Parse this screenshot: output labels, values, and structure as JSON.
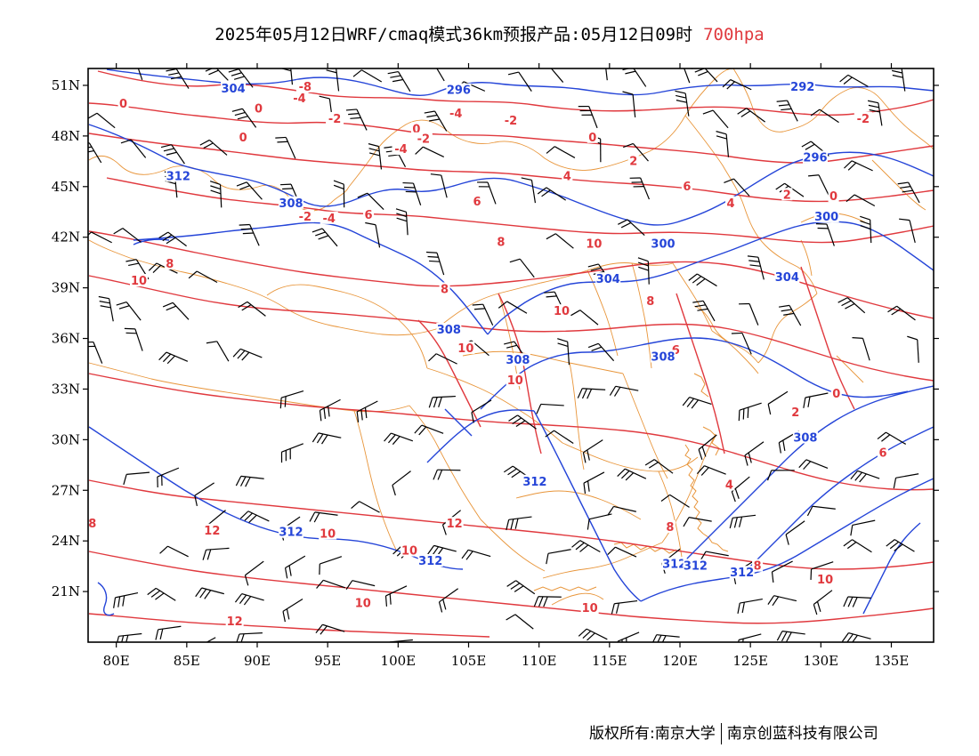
{
  "title": {
    "main": "2025年05月12日WRF/cmaq模式36km预报产品:05月12日09时",
    "level": "700hpa"
  },
  "axes": {
    "lat_labels": [
      "51N",
      "48N",
      "45N",
      "42N",
      "39N",
      "36N",
      "33N",
      "30N",
      "27N",
      "24N",
      "21N"
    ],
    "lat_values": [
      51,
      48,
      45,
      42,
      39,
      36,
      33,
      30,
      27,
      24,
      21
    ],
    "lon_labels": [
      "80E",
      "85E",
      "90E",
      "95E",
      "100E",
      "105E",
      "110E",
      "115E",
      "120E",
      "125E",
      "130E",
      "135E"
    ],
    "lon_values": [
      80,
      85,
      90,
      95,
      100,
      105,
      110,
      115,
      120,
      125,
      130,
      135
    ],
    "lon_range": [
      78,
      138
    ],
    "lat_range": [
      18,
      52
    ]
  },
  "colors": {
    "temperature": "#e0393e",
    "height": "#2545d8",
    "boundary": "#e8953a",
    "wind": "#000000"
  },
  "height_labels": [
    {
      "text": "304",
      "lon": 88.3,
      "lat": 50.8
    },
    {
      "text": "296",
      "lon": 104.3,
      "lat": 50.7
    },
    {
      "text": "292",
      "lon": 128.7,
      "lat": 50.9
    },
    {
      "text": "312",
      "lon": 84.4,
      "lat": 45.6
    },
    {
      "text": "308",
      "lon": 92.4,
      "lat": 44.0
    },
    {
      "text": "296",
      "lon": 129.6,
      "lat": 46.7
    },
    {
      "text": "300",
      "lon": 130.4,
      "lat": 43.2
    },
    {
      "text": "300",
      "lon": 118.8,
      "lat": 41.6
    },
    {
      "text": "304",
      "lon": 114.9,
      "lat": 39.5
    },
    {
      "text": "304",
      "lon": 127.6,
      "lat": 39.6
    },
    {
      "text": "308",
      "lon": 103.6,
      "lat": 36.5
    },
    {
      "text": "308",
      "lon": 108.5,
      "lat": 34.7
    },
    {
      "text": "308",
      "lon": 118.8,
      "lat": 34.9
    },
    {
      "text": "308",
      "lon": 128.9,
      "lat": 30.1
    },
    {
      "text": "312",
      "lon": 109.7,
      "lat": 27.5
    },
    {
      "text": "312",
      "lon": 92.4,
      "lat": 24.5
    },
    {
      "text": "312",
      "lon": 102.3,
      "lat": 22.8
    },
    {
      "text": "312",
      "lon": 119.6,
      "lat": 22.6
    },
    {
      "text": "312",
      "lon": 121.1,
      "lat": 22.5
    },
    {
      "text": "312",
      "lon": 124.4,
      "lat": 22.1
    }
  ],
  "temperature_labels": [
    {
      "text": "-8",
      "lon": 93.4,
      "lat": 50.9
    },
    {
      "text": "-4",
      "lon": 93.0,
      "lat": 50.2
    },
    {
      "text": "0",
      "lon": 80.5,
      "lat": 49.9
    },
    {
      "text": "0",
      "lon": 90.1,
      "lat": 49.6
    },
    {
      "text": "-2",
      "lon": 95.5,
      "lat": 49.0
    },
    {
      "text": "-4",
      "lon": 104.1,
      "lat": 49.3
    },
    {
      "text": "-2",
      "lon": 108.0,
      "lat": 48.9
    },
    {
      "text": "0",
      "lon": 101.3,
      "lat": 48.4
    },
    {
      "text": "-2",
      "lon": 101.8,
      "lat": 47.8
    },
    {
      "text": "0",
      "lon": 113.8,
      "lat": 47.9
    },
    {
      "text": "0",
      "lon": 89.0,
      "lat": 47.9
    },
    {
      "text": "-2",
      "lon": 133.0,
      "lat": 49.0
    },
    {
      "text": "-4",
      "lon": 100.2,
      "lat": 47.2
    },
    {
      "text": "2",
      "lon": 116.7,
      "lat": 46.5
    },
    {
      "text": "4",
      "lon": 112.0,
      "lat": 45.6
    },
    {
      "text": "6",
      "lon": 120.5,
      "lat": 45.0
    },
    {
      "text": "2",
      "lon": 127.6,
      "lat": 44.5
    },
    {
      "text": "0",
      "lon": 130.9,
      "lat": 44.4
    },
    {
      "text": "6",
      "lon": 105.6,
      "lat": 44.1
    },
    {
      "text": "4",
      "lon": 123.6,
      "lat": 44.0
    },
    {
      "text": "-2",
      "lon": 93.4,
      "lat": 43.2
    },
    {
      "text": "-4",
      "lon": 95.1,
      "lat": 43.1
    },
    {
      "text": "6",
      "lon": 97.9,
      "lat": 43.3
    },
    {
      "text": "8",
      "lon": 107.3,
      "lat": 41.7
    },
    {
      "text": "10",
      "lon": 113.9,
      "lat": 41.6
    },
    {
      "text": "8",
      "lon": 83.8,
      "lat": 40.4
    },
    {
      "text": "10",
      "lon": 81.6,
      "lat": 39.4
    },
    {
      "text": "8",
      "lon": 103.3,
      "lat": 38.9
    },
    {
      "text": "8",
      "lon": 117.9,
      "lat": 38.2
    },
    {
      "text": "10",
      "lon": 111.6,
      "lat": 37.6
    },
    {
      "text": "6",
      "lon": 119.7,
      "lat": 35.3
    },
    {
      "text": "10",
      "lon": 104.8,
      "lat": 35.4
    },
    {
      "text": "10",
      "lon": 108.3,
      "lat": 33.5
    },
    {
      "text": "0",
      "lon": 131.1,
      "lat": 32.7
    },
    {
      "text": "2",
      "lon": 128.2,
      "lat": 31.6
    },
    {
      "text": "6",
      "lon": 134.4,
      "lat": 29.2
    },
    {
      "text": "4",
      "lon": 123.5,
      "lat": 27.3
    },
    {
      "text": "12",
      "lon": 104.0,
      "lat": 25.0
    },
    {
      "text": "12",
      "lon": 86.8,
      "lat": 24.6
    },
    {
      "text": "10",
      "lon": 95.0,
      "lat": 24.4
    },
    {
      "text": "8",
      "lon": 119.3,
      "lat": 24.8
    },
    {
      "text": "8",
      "lon": 78.3,
      "lat": 25.0
    },
    {
      "text": "10",
      "lon": 100.8,
      "lat": 23.4
    },
    {
      "text": "8",
      "lon": 125.5,
      "lat": 22.5
    },
    {
      "text": "10",
      "lon": 130.3,
      "lat": 21.7
    },
    {
      "text": "10",
      "lon": 97.5,
      "lat": 20.3
    },
    {
      "text": "10",
      "lon": 113.6,
      "lat": 20.0
    },
    {
      "text": "12",
      "lon": 88.4,
      "lat": 19.2
    }
  ],
  "footer": {
    "left": "版权所有:南京大学",
    "right": "南京创蓝科技有限公司"
  }
}
